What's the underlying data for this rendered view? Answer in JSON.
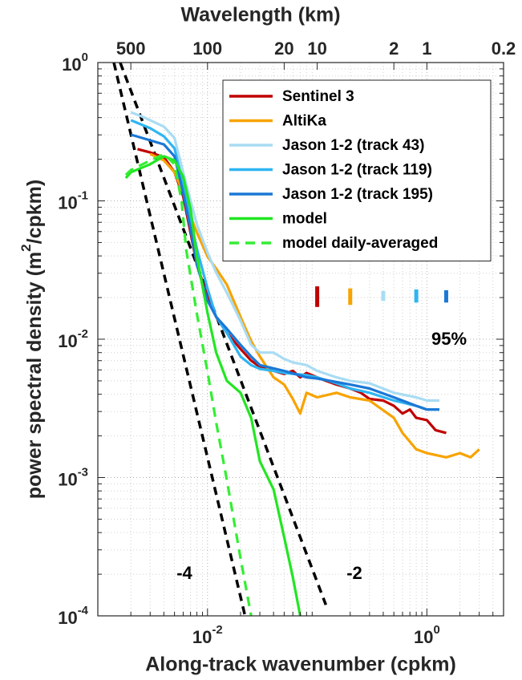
{
  "chart_data": {
    "type": "line",
    "x_label": "Along-track wavenumber (cpkm)",
    "y_label": "power spectral density (m^2/cpkm)",
    "x2_label": "Wavelength (km)",
    "xscale": "log",
    "yscale": "log",
    "xlim": [
      0.001,
      5
    ],
    "ylim": [
      0.0001,
      1
    ],
    "xticks": [
      {
        "value": 0.01,
        "label": "10^-2"
      },
      {
        "value": 1,
        "label": "10^0"
      }
    ],
    "yticks": [
      {
        "value": 0.0001,
        "label": "10^-4"
      },
      {
        "value": 0.001,
        "label": "10^-3"
      },
      {
        "value": 0.01,
        "label": "10^-2"
      },
      {
        "value": 0.1,
        "label": "10^-1"
      },
      {
        "value": 1,
        "label": "10^0"
      }
    ],
    "x2lim": [
      1000,
      0.2
    ],
    "x2ticks": [
      500,
      100,
      20,
      10,
      2,
      1,
      0.2
    ],
    "grid": true,
    "minor_grid": true,
    "legend": "northeast",
    "series": [
      {
        "name": "Sentinel 3",
        "color": "#c00000",
        "style": "solid",
        "x": [
          0.0023,
          0.003,
          0.004,
          0.005,
          0.006,
          0.007,
          0.008,
          0.01,
          0.012,
          0.015,
          0.02,
          0.025,
          0.03,
          0.04,
          0.05,
          0.06,
          0.07,
          0.08,
          0.1,
          0.12,
          0.15,
          0.2,
          0.25,
          0.3,
          0.4,
          0.5,
          0.6,
          0.7,
          0.8,
          1,
          1.2,
          1.5
        ],
        "values": [
          0.237,
          0.224,
          0.207,
          0.161,
          0.108,
          0.059,
          0.0346,
          0.0203,
          0.0145,
          0.0111,
          0.0085,
          0.007,
          0.0063,
          0.0059,
          0.0056,
          0.0059,
          0.0053,
          0.0057,
          0.0053,
          0.005,
          0.0047,
          0.0044,
          0.0041,
          0.0037,
          0.0036,
          0.0033,
          0.0029,
          0.0031,
          0.0027,
          0.0026,
          0.0022,
          0.0021
        ]
      },
      {
        "name": "AltiKa",
        "color": "#f7a300",
        "style": "solid",
        "x": [
          0.003,
          0.004,
          0.005,
          0.006,
          0.007,
          0.008,
          0.01,
          0.012,
          0.015,
          0.02,
          0.025,
          0.03,
          0.04,
          0.05,
          0.06,
          0.07,
          0.08,
          0.1,
          0.15,
          0.2,
          0.3,
          0.5,
          0.6,
          0.8,
          1,
          1.5,
          2,
          2.5,
          3
        ],
        "values": [
          0.218,
          0.196,
          0.161,
          0.115,
          0.077,
          0.059,
          0.0396,
          0.0324,
          0.0248,
          0.0145,
          0.0097,
          0.0075,
          0.0053,
          0.0047,
          0.0037,
          0.0029,
          0.0041,
          0.0038,
          0.0041,
          0.0038,
          0.0036,
          0.0027,
          0.0021,
          0.0016,
          0.0015,
          0.0014,
          0.0015,
          0.0014,
          0.0016
        ]
      },
      {
        "name": "Jason 1-2 (track 43)",
        "color": "#a9dcf3",
        "style": "solid",
        "x": [
          0.002,
          0.0025,
          0.003,
          0.004,
          0.005,
          0.006,
          0.007,
          0.008,
          0.01,
          0.012,
          0.015,
          0.02,
          0.025,
          0.03,
          0.04,
          0.05,
          0.06,
          0.08,
          0.1,
          0.15,
          0.2,
          0.3,
          0.5,
          0.8,
          1,
          1.3
        ],
        "values": [
          0.437,
          0.409,
          0.383,
          0.344,
          0.285,
          0.161,
          0.101,
          0.0675,
          0.0423,
          0.0303,
          0.0217,
          0.0136,
          0.0091,
          0.008,
          0.008,
          0.0072,
          0.0068,
          0.0065,
          0.0059,
          0.0053,
          0.005,
          0.0048,
          0.0041,
          0.0038,
          0.0036,
          0.0036
        ]
      },
      {
        "name": "Jason 1-2 (track 119)",
        "color": "#2fb5f2",
        "style": "solid",
        "x": [
          0.002,
          0.003,
          0.004,
          0.005,
          0.006,
          0.007,
          0.008,
          0.01,
          0.012,
          0.015,
          0.02,
          0.025,
          0.03,
          0.04,
          0.05,
          0.08,
          0.1,
          0.15,
          0.2,
          0.3,
          0.5,
          0.8,
          1,
          1.3
        ],
        "values": [
          0.383,
          0.335,
          0.293,
          0.24,
          0.132,
          0.072,
          0.0452,
          0.0232,
          0.0145,
          0.0111,
          0.0075,
          0.0065,
          0.0061,
          0.0059,
          0.0057,
          0.0055,
          0.0053,
          0.0048,
          0.0044,
          0.0041,
          0.0036,
          0.0033,
          0.0031,
          0.0031
        ]
      },
      {
        "name": "Jason 1-2 (track 195)",
        "color": "#1b78d6",
        "style": "solid",
        "x": [
          0.002,
          0.003,
          0.004,
          0.005,
          0.006,
          0.007,
          0.008,
          0.01,
          0.012,
          0.015,
          0.02,
          0.025,
          0.03,
          0.05,
          0.08,
          0.1,
          0.2,
          0.3,
          0.5,
          0.8,
          1,
          1.3
        ],
        "values": [
          0.301,
          0.274,
          0.256,
          0.21,
          0.115,
          0.063,
          0.0346,
          0.019,
          0.0145,
          0.0119,
          0.0091,
          0.0075,
          0.0065,
          0.0059,
          0.0053,
          0.0052,
          0.0047,
          0.0044,
          0.0038,
          0.0033,
          0.0031,
          0.0031
        ]
      },
      {
        "name": "model",
        "color": "#22e622",
        "style": "solid",
        "x": [
          0.0018,
          0.002,
          0.003,
          0.004,
          0.005,
          0.006,
          0.007,
          0.008,
          0.01,
          0.012,
          0.015,
          0.02,
          0.025,
          0.03,
          0.04,
          0.05,
          0.06,
          0.07
        ],
        "values": [
          0.146,
          0.161,
          0.184,
          0.21,
          0.196,
          0.15,
          0.088,
          0.0396,
          0.0155,
          0.008,
          0.005,
          0.0041,
          0.0027,
          0.00131,
          0.00082,
          0.00037,
          0.00019,
          0.0001
        ]
      },
      {
        "name": "model daily-averaged",
        "color": "#33ee33",
        "style": "dashed",
        "x": [
          0.0018,
          0.002,
          0.003,
          0.004,
          0.005,
          0.0058,
          0.0064,
          0.008,
          0.01,
          0.012,
          0.015,
          0.02,
          0.025
        ],
        "values": [
          0.154,
          0.167,
          0.196,
          0.218,
          0.184,
          0.1,
          0.044,
          0.0153,
          0.0058,
          0.0025,
          0.00096,
          0.00026,
          0.0001
        ]
      }
    ],
    "reference_lines": [
      {
        "label": "-4",
        "color": "#000000",
        "x": [
          0.0014,
          0.022
        ],
        "values": [
          1,
          0.0001
        ]
      },
      {
        "label": "-2",
        "color": "#000000",
        "x": [
          0.0016,
          0.12
        ],
        "values": [
          1,
          0.00012
        ]
      }
    ],
    "confidence": {
      "label": "95%",
      "bars": [
        {
          "x": 0.1,
          "low": 0.0171,
          "high": 0.0241,
          "color": "#c00000"
        },
        {
          "x": 0.2,
          "low": 0.0177,
          "high": 0.0233,
          "color": "#f7a300"
        },
        {
          "x": 0.4,
          "low": 0.0189,
          "high": 0.0223,
          "color": "#a9dcf3"
        },
        {
          "x": 0.8,
          "low": 0.0184,
          "high": 0.0229,
          "color": "#2fb5f2"
        },
        {
          "x": 1.5,
          "low": 0.0184,
          "high": 0.0226,
          "color": "#1b78d6"
        }
      ]
    }
  }
}
